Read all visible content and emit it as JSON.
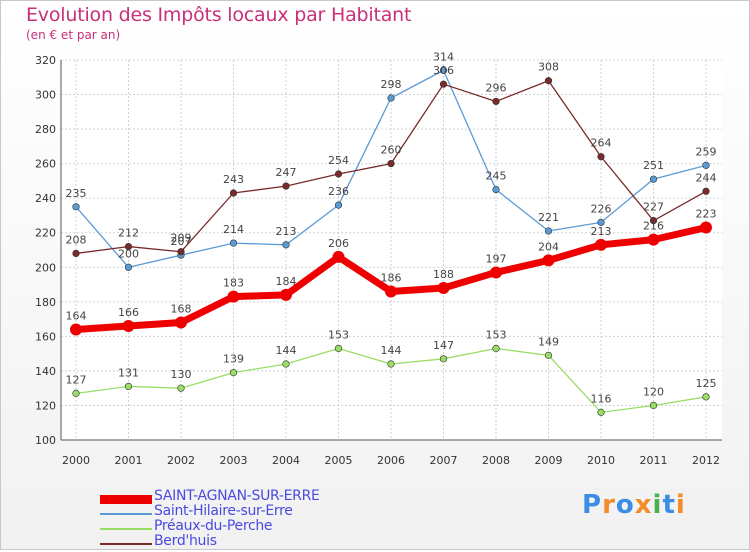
{
  "chart_data": {
    "type": "line",
    "title": "Evolution des Impôts locaux par Habitant",
    "subtitle": "(en € et par an)",
    "x": [
      "2000",
      "2001",
      "2002",
      "2003",
      "2004",
      "2005",
      "2006",
      "2007",
      "2008",
      "2009",
      "2010",
      "2011",
      "2012"
    ],
    "ylim": [
      100,
      320
    ],
    "yticks": [
      100,
      120,
      140,
      160,
      180,
      200,
      220,
      240,
      260,
      280,
      300,
      320
    ],
    "grid": true,
    "legend_position": "bottom-left",
    "series": [
      {
        "name": "SAINT-AGNAN-SUR-ERRE",
        "color": "#ee0000",
        "width": 7,
        "marker": 6,
        "values": [
          164,
          166,
          168,
          183,
          184,
          206,
          186,
          188,
          197,
          204,
          213,
          216,
          223
        ]
      },
      {
        "name": "Saint-Hilaire-sur-Erre",
        "color": "#5b9bd5",
        "width": 1.3,
        "marker": 3.3,
        "values": [
          235,
          200,
          207,
          214,
          213,
          236,
          298,
          314,
          245,
          221,
          226,
          251,
          259
        ]
      },
      {
        "name": "Préaux-du-Perche",
        "color": "#99dd66",
        "width": 1.3,
        "marker": 3.3,
        "values": [
          127,
          131,
          130,
          139,
          144,
          153,
          144,
          147,
          153,
          149,
          116,
          120,
          125
        ]
      },
      {
        "name": "Berd'huis",
        "color": "#7a2a2a",
        "width": 1.3,
        "marker": 3.3,
        "values": [
          208,
          212,
          209,
          243,
          247,
          254,
          260,
          306,
          296,
          308,
          264,
          227,
          244
        ]
      }
    ]
  },
  "logo": {
    "letters": [
      "P",
      "r",
      "o",
      "x",
      "i",
      "t",
      "i"
    ],
    "colors": [
      "#3a8ee6",
      "#f28c28",
      "#3a8ee6",
      "#f28c28",
      "#4caf50",
      "#3a8ee6",
      "#f28c28"
    ]
  }
}
